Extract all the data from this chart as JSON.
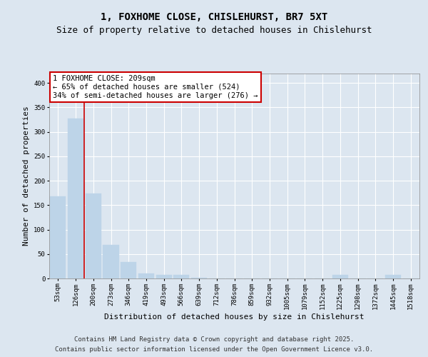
{
  "title1": "1, FOXHOME CLOSE, CHISLEHURST, BR7 5XT",
  "title2": "Size of property relative to detached houses in Chislehurst",
  "xlabel": "Distribution of detached houses by size in Chislehurst",
  "ylabel": "Number of detached properties",
  "categories": [
    "53sqm",
    "126sqm",
    "200sqm",
    "273sqm",
    "346sqm",
    "419sqm",
    "493sqm",
    "566sqm",
    "639sqm",
    "712sqm",
    "786sqm",
    "859sqm",
    "932sqm",
    "1005sqm",
    "1079sqm",
    "1152sqm",
    "1225sqm",
    "1298sqm",
    "1372sqm",
    "1445sqm",
    "1518sqm"
  ],
  "values": [
    168,
    327,
    174,
    68,
    34,
    10,
    8,
    8,
    1,
    0,
    0,
    0,
    0,
    0,
    0,
    0,
    8,
    0,
    0,
    8,
    0
  ],
  "bar_color": "#bdd4e8",
  "vline_color": "#cc0000",
  "vline_x": 1.5,
  "annotation_text": "1 FOXHOME CLOSE: 209sqm\n← 65% of detached houses are smaller (524)\n34% of semi-detached houses are larger (276) →",
  "ylim": [
    0,
    420
  ],
  "yticks": [
    0,
    50,
    100,
    150,
    200,
    250,
    300,
    350,
    400
  ],
  "bg_color": "#dce6f0",
  "plot_bg_color": "#dce6f0",
  "grid_color": "#ffffff",
  "footer1": "Contains HM Land Registry data © Crown copyright and database right 2025.",
  "footer2": "Contains public sector information licensed under the Open Government Licence v3.0.",
  "title_fontsize": 10,
  "subtitle_fontsize": 9,
  "tick_fontsize": 6.5,
  "annotation_fontsize": 7.5,
  "xlabel_fontsize": 8,
  "ylabel_fontsize": 8,
  "footer_fontsize": 6.5
}
